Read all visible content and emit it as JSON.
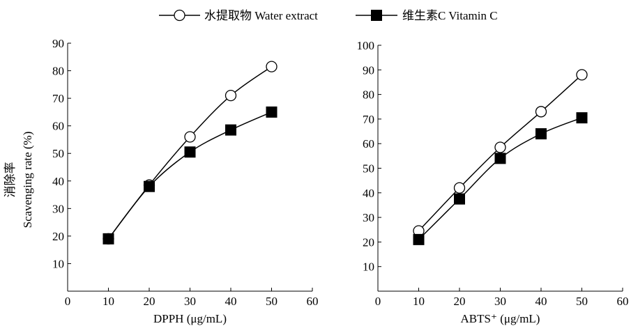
{
  "legend": {
    "items": [
      {
        "label": "水提取物 Water extract",
        "marker": "open-circle"
      },
      {
        "label": "维生素C Vitamin C",
        "marker": "filled-square"
      }
    ]
  },
  "chart_data": [
    {
      "type": "line",
      "xlabel": "DPPH (μg/mL)",
      "ylabel": [
        "消除率",
        "Scavenging rate (%)"
      ],
      "xlim": [
        0,
        60
      ],
      "ylim": [
        0,
        90
      ],
      "xticks": [
        0,
        10,
        20,
        30,
        40,
        50,
        60
      ],
      "yticks": [
        10,
        20,
        30,
        40,
        50,
        60,
        70,
        80,
        90
      ],
      "grid": false,
      "x": [
        10,
        20,
        30,
        40,
        50
      ],
      "series": [
        {
          "name": "水提取物 Water extract",
          "marker": "open-circle",
          "values": [
            19,
            38.5,
            56,
            71,
            81.5
          ]
        },
        {
          "name": "维生素C Vitamin C",
          "marker": "filled-square",
          "values": [
            19,
            38,
            50.5,
            58.5,
            65
          ]
        }
      ]
    },
    {
      "type": "line",
      "xlabel": "ABTS⁺ (μg/mL)",
      "ylabel": [],
      "xlim": [
        0,
        60
      ],
      "ylim": [
        0,
        100
      ],
      "xticks": [
        0,
        10,
        20,
        30,
        40,
        50,
        60
      ],
      "yticks": [
        10,
        20,
        30,
        40,
        50,
        60,
        70,
        80,
        90,
        100
      ],
      "grid": false,
      "x": [
        10,
        20,
        30,
        40,
        50
      ],
      "series": [
        {
          "name": "水提取物 Water extract",
          "marker": "open-circle",
          "values": [
            24.5,
            42,
            58.5,
            73,
            88
          ]
        },
        {
          "name": "维生素C Vitamin C",
          "marker": "filled-square",
          "values": [
            21,
            37.5,
            54,
            64,
            70.5
          ]
        }
      ]
    }
  ]
}
